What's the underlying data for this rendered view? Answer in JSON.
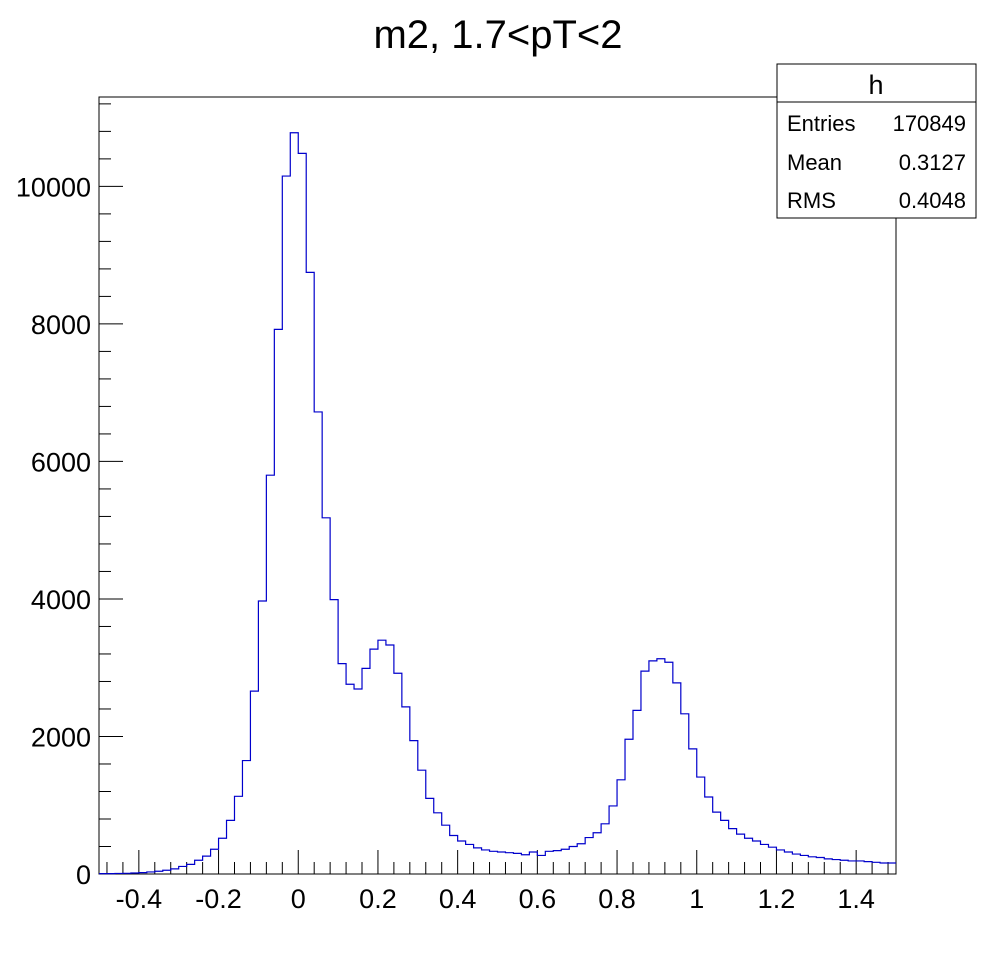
{
  "chart_data": {
    "type": "histogram",
    "title": "m2, 1.7<pT<2",
    "xlabel": "",
    "ylabel": "",
    "xlim": [
      -0.5,
      1.5
    ],
    "ylim": [
      0,
      11300
    ],
    "bin_width": 0.02,
    "x_ticks": [
      -0.4,
      -0.2,
      0,
      0.2,
      0.4,
      0.6,
      0.8,
      1.0,
      1.2,
      1.4
    ],
    "x_tick_labels": [
      "-0.4",
      "-0.2",
      "0",
      "0.2",
      "0.4",
      "0.6",
      "0.8",
      "1",
      "1.2",
      "1.4"
    ],
    "y_ticks": [
      0,
      2000,
      4000,
      6000,
      8000,
      10000
    ],
    "y_tick_labels": [
      "0",
      "2000",
      "4000",
      "6000",
      "8000",
      "10000"
    ],
    "line_color": "#0000cc",
    "values": [
      5,
      5,
      8,
      10,
      15,
      20,
      30,
      40,
      55,
      75,
      110,
      140,
      200,
      260,
      360,
      520,
      780,
      1130,
      1650,
      2660,
      3970,
      5800,
      7920,
      10150,
      10780,
      10480,
      8750,
      6720,
      5180,
      3990,
      3060,
      2760,
      2690,
      2990,
      3270,
      3400,
      3330,
      2920,
      2430,
      1940,
      1510,
      1100,
      890,
      710,
      560,
      480,
      430,
      380,
      350,
      330,
      320,
      310,
      300,
      280,
      320,
      270,
      330,
      340,
      360,
      400,
      440,
      530,
      600,
      730,
      990,
      1370,
      1960,
      2380,
      2950,
      3100,
      3130,
      3080,
      2780,
      2330,
      1820,
      1410,
      1120,
      900,
      780,
      660,
      580,
      520,
      480,
      430,
      390,
      350,
      320,
      290,
      270,
      250,
      240,
      220,
      210,
      200,
      190,
      190,
      180,
      170,
      160,
      160
    ]
  },
  "stats_box": {
    "title": "h",
    "rows": [
      {
        "label": "Entries",
        "value": "170849"
      },
      {
        "label": "Mean",
        "value": "0.3127"
      },
      {
        "label": "RMS",
        "value": "0.4048"
      }
    ]
  }
}
